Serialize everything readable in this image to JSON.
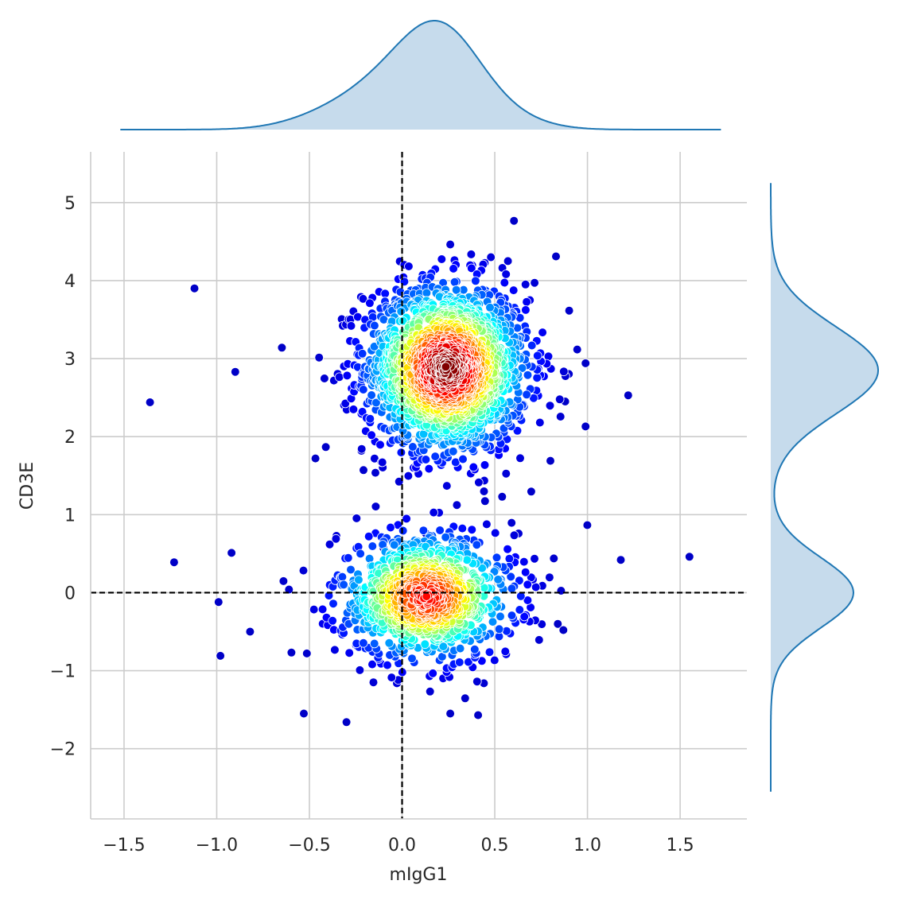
{
  "chart_data": {
    "type": "scatter",
    "subtype": "joint-plot-with-marginal-kde",
    "xlabel": "mIgG1",
    "ylabel": "CD3E",
    "xlim": [
      -1.68,
      1.86
    ],
    "ylim": [
      -2.9,
      5.65
    ],
    "x_ticks": [
      {
        "value": -1.5,
        "label": "−1.5"
      },
      {
        "value": -1.0,
        "label": "−1.0"
      },
      {
        "value": -0.5,
        "label": "−0.5"
      },
      {
        "value": 0.0,
        "label": "0.0"
      },
      {
        "value": 0.5,
        "label": "0.5"
      },
      {
        "value": 1.0,
        "label": "1.0"
      },
      {
        "value": 1.5,
        "label": "1.5"
      }
    ],
    "y_ticks": [
      {
        "value": -2,
        "label": "−2"
      },
      {
        "value": -1,
        "label": "−1"
      },
      {
        "value": 0,
        "label": "0"
      },
      {
        "value": 1,
        "label": "1"
      },
      {
        "value": 2,
        "label": "2"
      },
      {
        "value": 3,
        "label": "3"
      },
      {
        "value": 4,
        "label": "4"
      },
      {
        "value": 5,
        "label": "5"
      }
    ],
    "grid": true,
    "reference_lines": {
      "x": 0,
      "y": 0,
      "style": "dashed",
      "color": "#000000"
    },
    "color_map": "jet (point density: low = dark blue, high = dark red)",
    "clusters": [
      {
        "center_x": 0.24,
        "center_y": 2.88,
        "sd_x": 0.22,
        "sd_y": 0.55,
        "approx_points": 1800
      },
      {
        "center_x": 0.13,
        "center_y": -0.05,
        "sd_x": 0.24,
        "sd_y": 0.42,
        "approx_points": 1000
      }
    ],
    "outliers": [
      [
        -1.12,
        3.9
      ],
      [
        -1.36,
        2.44
      ],
      [
        -0.9,
        2.83
      ],
      [
        -1.23,
        0.39
      ],
      [
        -0.92,
        0.51
      ],
      [
        -0.99,
        -0.12
      ],
      [
        -0.98,
        -0.81
      ],
      [
        -0.82,
        -0.5
      ],
      [
        -0.53,
        -1.55
      ],
      [
        -0.3,
        -1.66
      ],
      [
        0.41,
        -1.57
      ],
      [
        0.26,
        -1.55
      ],
      [
        0.83,
        4.31
      ],
      [
        0.99,
        2.94
      ],
      [
        0.99,
        2.13
      ],
      [
        1.22,
        2.53
      ],
      [
        1.18,
        0.42
      ],
      [
        1.55,
        0.46
      ],
      [
        0.84,
        -0.4
      ],
      [
        0.87,
        -0.48
      ],
      [
        0.88,
        2.45
      ],
      [
        0.8,
        1.69
      ]
    ],
    "marginal_x_kde": {
      "peak_x": 0.2,
      "color": "#1f77b4",
      "fill": "#c6dbec"
    },
    "marginal_y_kde": {
      "peaks_y": [
        2.85,
        0.0
      ],
      "color": "#1f77b4",
      "fill": "#c6dbec"
    },
    "colors": {
      "grid": "#cccccc",
      "kde_line": "#1f77b4",
      "kde_fill": "#c6dbec",
      "point_edge": "#ffffff"
    }
  }
}
